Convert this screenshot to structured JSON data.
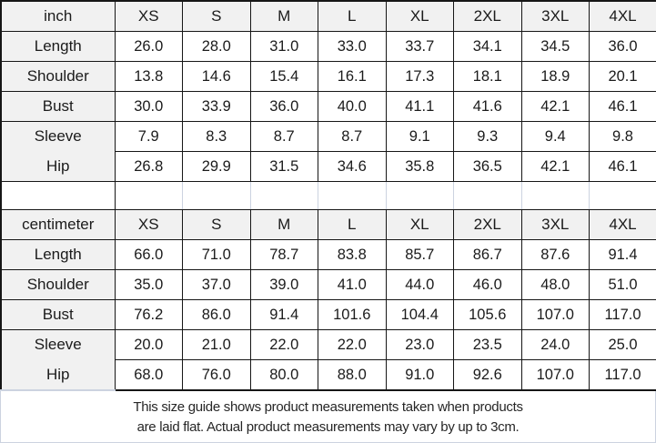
{
  "tables": [
    {
      "unit": "inch",
      "sizes": [
        "XS",
        "S",
        "M",
        "L",
        "XL",
        "2XL",
        "3XL",
        "4XL"
      ],
      "rows": [
        {
          "label": "Length",
          "values": [
            "26.0",
            "28.0",
            "31.0",
            "33.0",
            "33.7",
            "34.1",
            "34.5",
            "36.0"
          ]
        },
        {
          "label": "Shoulder",
          "values": [
            "13.8",
            "14.6",
            "15.4",
            "16.1",
            "17.3",
            "18.1",
            "18.9",
            "20.1"
          ]
        },
        {
          "label": "Bust",
          "values": [
            "30.0",
            "33.9",
            "36.0",
            "40.0",
            "41.1",
            "41.6",
            "42.1",
            "46.1"
          ]
        },
        {
          "label": "Sleeve",
          "values": [
            "7.9",
            "8.3",
            "8.7",
            "8.7",
            "9.1",
            "9.3",
            "9.4",
            "9.8"
          ]
        },
        {
          "label": "Hip",
          "values": [
            "26.8",
            "29.9",
            "31.5",
            "34.6",
            "35.8",
            "36.5",
            "42.1",
            "46.1"
          ]
        }
      ]
    },
    {
      "unit": "centimeter",
      "sizes": [
        "XS",
        "S",
        "M",
        "L",
        "XL",
        "2XL",
        "3XL",
        "4XL"
      ],
      "rows": [
        {
          "label": "Length",
          "values": [
            "66.0",
            "71.0",
            "78.7",
            "83.8",
            "85.7",
            "86.7",
            "87.6",
            "91.4"
          ]
        },
        {
          "label": "Shoulder",
          "values": [
            "35.0",
            "37.0",
            "39.0",
            "41.0",
            "44.0",
            "46.0",
            "48.0",
            "51.0"
          ]
        },
        {
          "label": "Bust",
          "values": [
            "76.2",
            "86.0",
            "91.4",
            "101.6",
            "104.4",
            "105.6",
            "107.0",
            "117.0"
          ]
        },
        {
          "label": "Sleeve",
          "values": [
            "20.0",
            "21.0",
            "22.0",
            "22.0",
            "23.0",
            "23.5",
            "24.0",
            "25.0"
          ]
        },
        {
          "label": "Hip",
          "values": [
            "68.0",
            "76.0",
            "80.0",
            "88.0",
            "91.0",
            "92.6",
            "107.0",
            "117.0"
          ]
        }
      ]
    }
  ],
  "footer": {
    "line1": "This size guide shows product measurements taken when products",
    "line2": "are laid flat. Actual product measurements may vary by up to 3cm."
  },
  "colors": {
    "header_bg": "#f1f1f1",
    "cell_bg": "#ffffff",
    "border_dark": "#161616",
    "grid_light": "#ccd3e0",
    "text": "#1b1b1b"
  }
}
